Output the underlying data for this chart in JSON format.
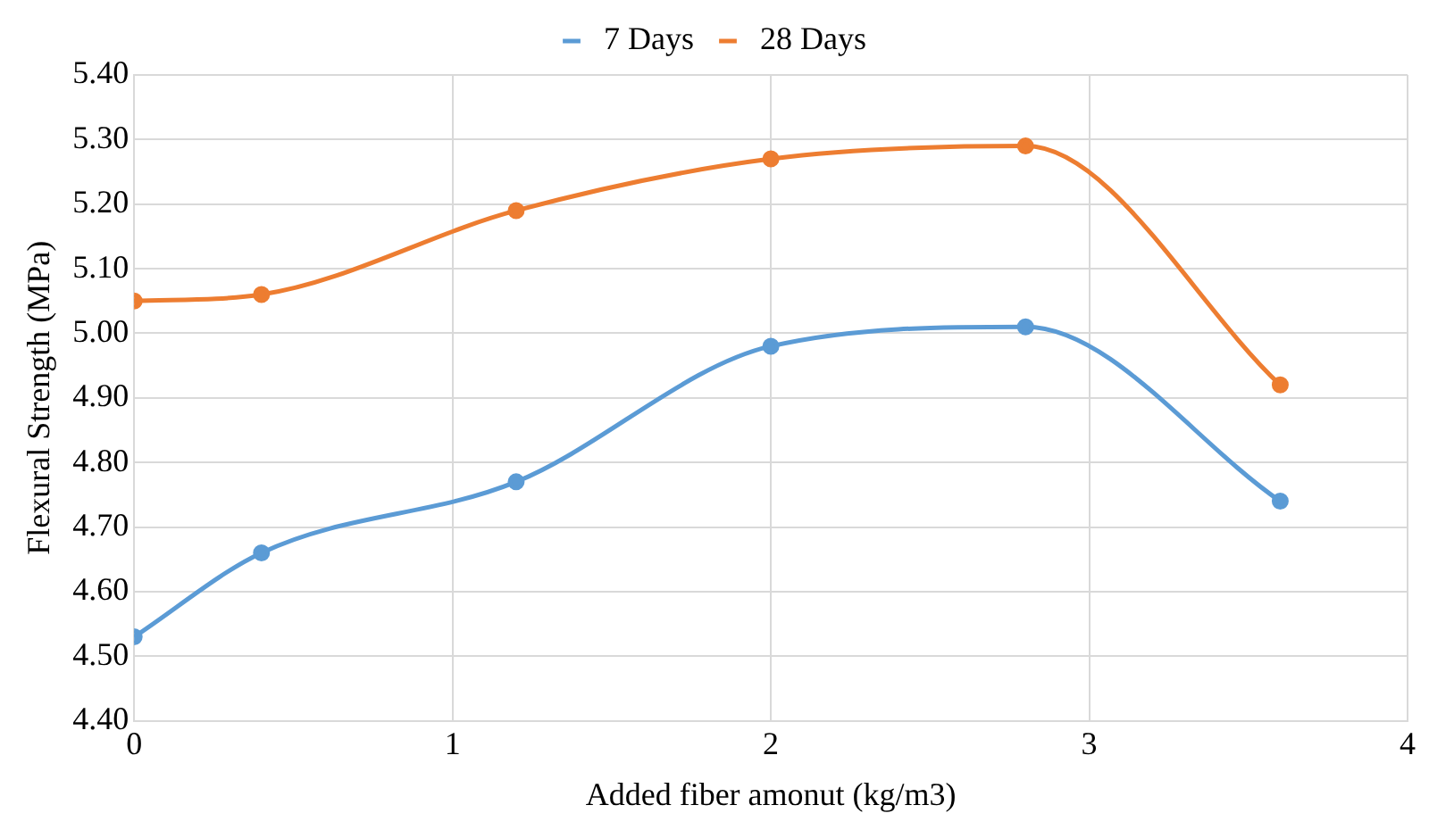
{
  "chart_data": {
    "type": "line",
    "xlabel": "Added fiber amonut (kg/m3)",
    "ylabel": "Flexural Strength (MPa)",
    "x": [
      0,
      0.4,
      1.2,
      2,
      2.8,
      3.6
    ],
    "series": [
      {
        "name": "7 Days",
        "color": "#5b9bd5",
        "values": [
          4.53,
          4.66,
          4.77,
          4.98,
          5.01,
          4.74
        ]
      },
      {
        "name": "28 Days",
        "color": "#ed7d31",
        "values": [
          5.05,
          5.06,
          5.19,
          5.27,
          5.29,
          4.92
        ]
      }
    ],
    "xlim": [
      0,
      4
    ],
    "xticks": [
      0,
      1,
      2,
      3,
      4
    ],
    "ylim": [
      4.4,
      5.4
    ],
    "yticks": [
      {
        "value": 4.4,
        "label": "4.40"
      },
      {
        "value": 4.5,
        "label": "4.50"
      },
      {
        "value": 4.6,
        "label": "4.60"
      },
      {
        "value": 4.7,
        "label": "4.70"
      },
      {
        "value": 4.8,
        "label": "4.80"
      },
      {
        "value": 4.9,
        "label": "4.90"
      },
      {
        "value": 5.0,
        "label": "5.00"
      },
      {
        "value": 5.1,
        "label": "5.10"
      },
      {
        "value": 5.2,
        "label": "5.20"
      },
      {
        "value": 5.3,
        "label": "5.30"
      },
      {
        "value": 5.4,
        "label": "5.40"
      }
    ],
    "grid": true,
    "legend": "top",
    "marker": "circle",
    "line_style": "solid"
  }
}
